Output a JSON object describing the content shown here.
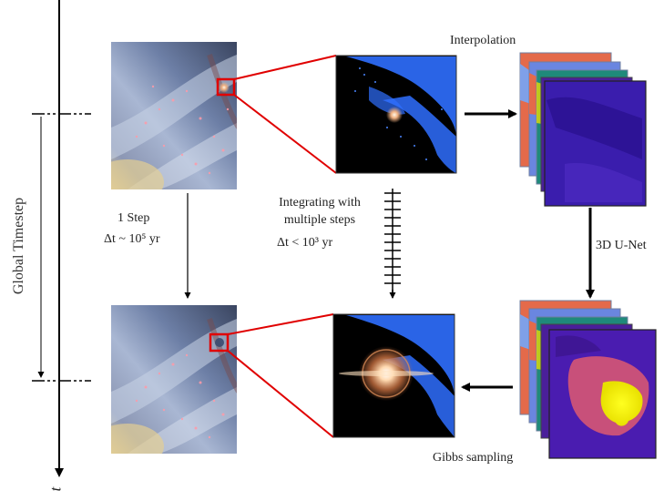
{
  "labels": {
    "interpolation": "Interpolation",
    "unet": "3D U-Net",
    "gibbs": "Gibbs sampling",
    "global_timestep": "Global Timestep",
    "one_step": "1 Step",
    "one_step_dt": "Δt ~ 10⁵ yr",
    "integrating_line1": "Integrating with",
    "integrating_line2": "multiple steps",
    "integrating_dt": "Δt < 10³ yr",
    "time_axis": "t"
  },
  "colors": {
    "highlight": "#e00000",
    "arrow": "#000000",
    "gas": "#2f6fff",
    "field_low": "#3a1a7a",
    "field_mid": "#c8507a",
    "field_high": "#f2f000"
  }
}
